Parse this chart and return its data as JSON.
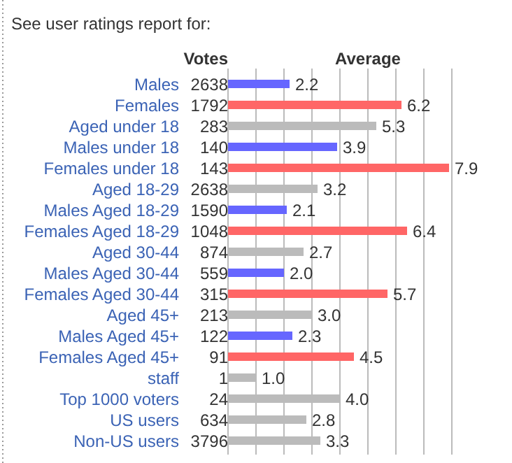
{
  "chart_data": {
    "type": "bar",
    "orientation": "horizontal",
    "title": "See user ratings report for:",
    "xlabel": "Average",
    "categories": [
      "Males",
      "Females",
      "Aged under 18",
      "Males under 18",
      "Females under 18",
      "Aged 18-29",
      "Males Aged 18-29",
      "Females Aged 18-29",
      "Aged 30-44",
      "Males Aged 30-44",
      "Females Aged 30-44",
      "Aged 45+",
      "Males Aged 45+",
      "Females Aged 45+",
      "staff",
      "Top 1000 voters",
      "US users",
      "Non-US users"
    ],
    "values": [
      2.2,
      6.2,
      5.3,
      3.9,
      7.9,
      3.2,
      2.1,
      6.4,
      2.7,
      2.0,
      5.7,
      3.0,
      2.3,
      4.5,
      1.0,
      4.0,
      2.8,
      3.3
    ],
    "value_labels": [
      "2.2",
      "6.2",
      "5.3",
      "3.9",
      "7.9",
      "3.2",
      "2.1",
      "6.4",
      "2.7",
      "2.0",
      "5.7",
      "3.0",
      "2.3",
      "4.5",
      "1.0",
      "4.0",
      "2.8",
      "3.3"
    ],
    "colors": [
      "#6666ff",
      "#ff6666",
      "#bbbbbb",
      "#6666ff",
      "#ff6666",
      "#bbbbbb",
      "#6666ff",
      "#ff6666",
      "#bbbbbb",
      "#6666ff",
      "#ff6666",
      "#bbbbbb",
      "#6666ff",
      "#ff6666",
      "#bbbbbb",
      "#bbbbbb",
      "#bbbbbb",
      "#bbbbbb"
    ],
    "xlim": [
      0,
      8
    ],
    "xticks": [
      {
        "value": 1,
        "label": null
      },
      {
        "value": 2,
        "label": null
      },
      {
        "value": 3,
        "label": null
      },
      {
        "value": 4,
        "label": null
      },
      {
        "value": 5,
        "label": null
      },
      {
        "value": 6,
        "label": null
      },
      {
        "value": 7,
        "label": null
      },
      {
        "value": 8,
        "label": null
      }
    ],
    "grid": "x",
    "annotations": [
      "Votes",
      "2638",
      "1792",
      "283",
      "140",
      "143",
      "2638",
      "1590",
      "1048",
      "874",
      "559",
      "315",
      "213",
      "122",
      "91",
      "1",
      "24",
      "634",
      "3796"
    ]
  }
}
